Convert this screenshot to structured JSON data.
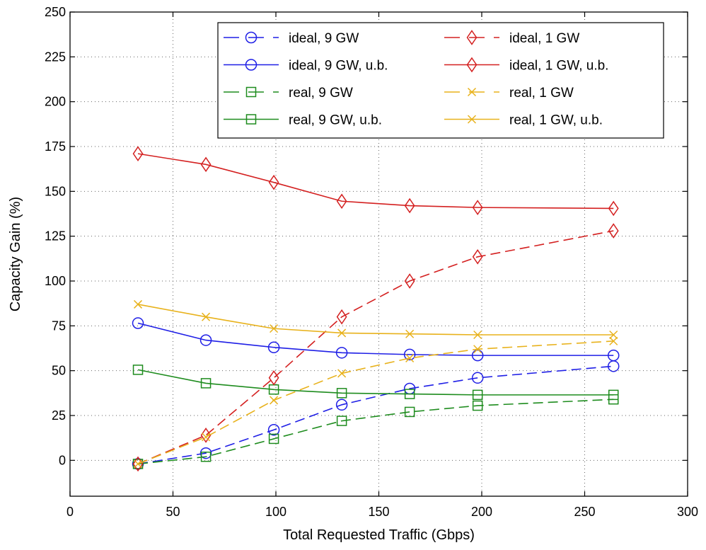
{
  "chart_data": {
    "type": "line",
    "title": "",
    "xlabel": "Total Requested Traffic (Gbps)",
    "ylabel": "Capacity Gain (%)",
    "xlim": [
      0,
      300
    ],
    "ylim": [
      -20,
      250
    ],
    "xticks": [
      0,
      50,
      100,
      150,
      200,
      250,
      300
    ],
    "yticks": [
      0,
      25,
      50,
      75,
      100,
      125,
      150,
      175,
      200,
      225,
      250
    ],
    "grid": true,
    "legend_position": "top-right",
    "x": [
      33,
      66,
      99,
      132,
      165,
      198,
      264
    ],
    "series": [
      {
        "name": "ideal, 9 GW",
        "color": "#1f1fe6",
        "dash": true,
        "marker": "circle",
        "values": [
          -2,
          4,
          17,
          31,
          40,
          46,
          52.5
        ]
      },
      {
        "name": "ideal, 9 GW, u.b.",
        "color": "#1f1fe6",
        "dash": false,
        "marker": "circle",
        "values": [
          76.5,
          67,
          63,
          60,
          59,
          58.5,
          58.5
        ]
      },
      {
        "name": "real, 9 GW",
        "color": "#1e8c1e",
        "dash": true,
        "marker": "square",
        "values": [
          -2,
          2,
          12,
          22,
          27,
          30.5,
          34
        ]
      },
      {
        "name": "real, 9 GW, u.b.",
        "color": "#1e8c1e",
        "dash": false,
        "marker": "square",
        "values": [
          50.5,
          43,
          39.5,
          37.5,
          37,
          36.5,
          36.5
        ]
      },
      {
        "name": "ideal, 1 GW",
        "color": "#d42020",
        "dash": true,
        "marker": "diamond",
        "values": [
          -2,
          14,
          46,
          80,
          100,
          113.5,
          128
        ]
      },
      {
        "name": "ideal, 1 GW, u.b.",
        "color": "#d42020",
        "dash": false,
        "marker": "diamond",
        "values": [
          171,
          165,
          155,
          144.5,
          142,
          141,
          140.5
        ]
      },
      {
        "name": "real, 1 GW",
        "color": "#e8b21c",
        "dash": true,
        "marker": "x",
        "values": [
          -2,
          13,
          33.5,
          48.5,
          57,
          62,
          66.5
        ]
      },
      {
        "name": "real, 1 GW, u.b.",
        "color": "#e8b21c",
        "dash": false,
        "marker": "x",
        "values": [
          87,
          80,
          73.5,
          71,
          70.5,
          70,
          70
        ]
      }
    ]
  }
}
